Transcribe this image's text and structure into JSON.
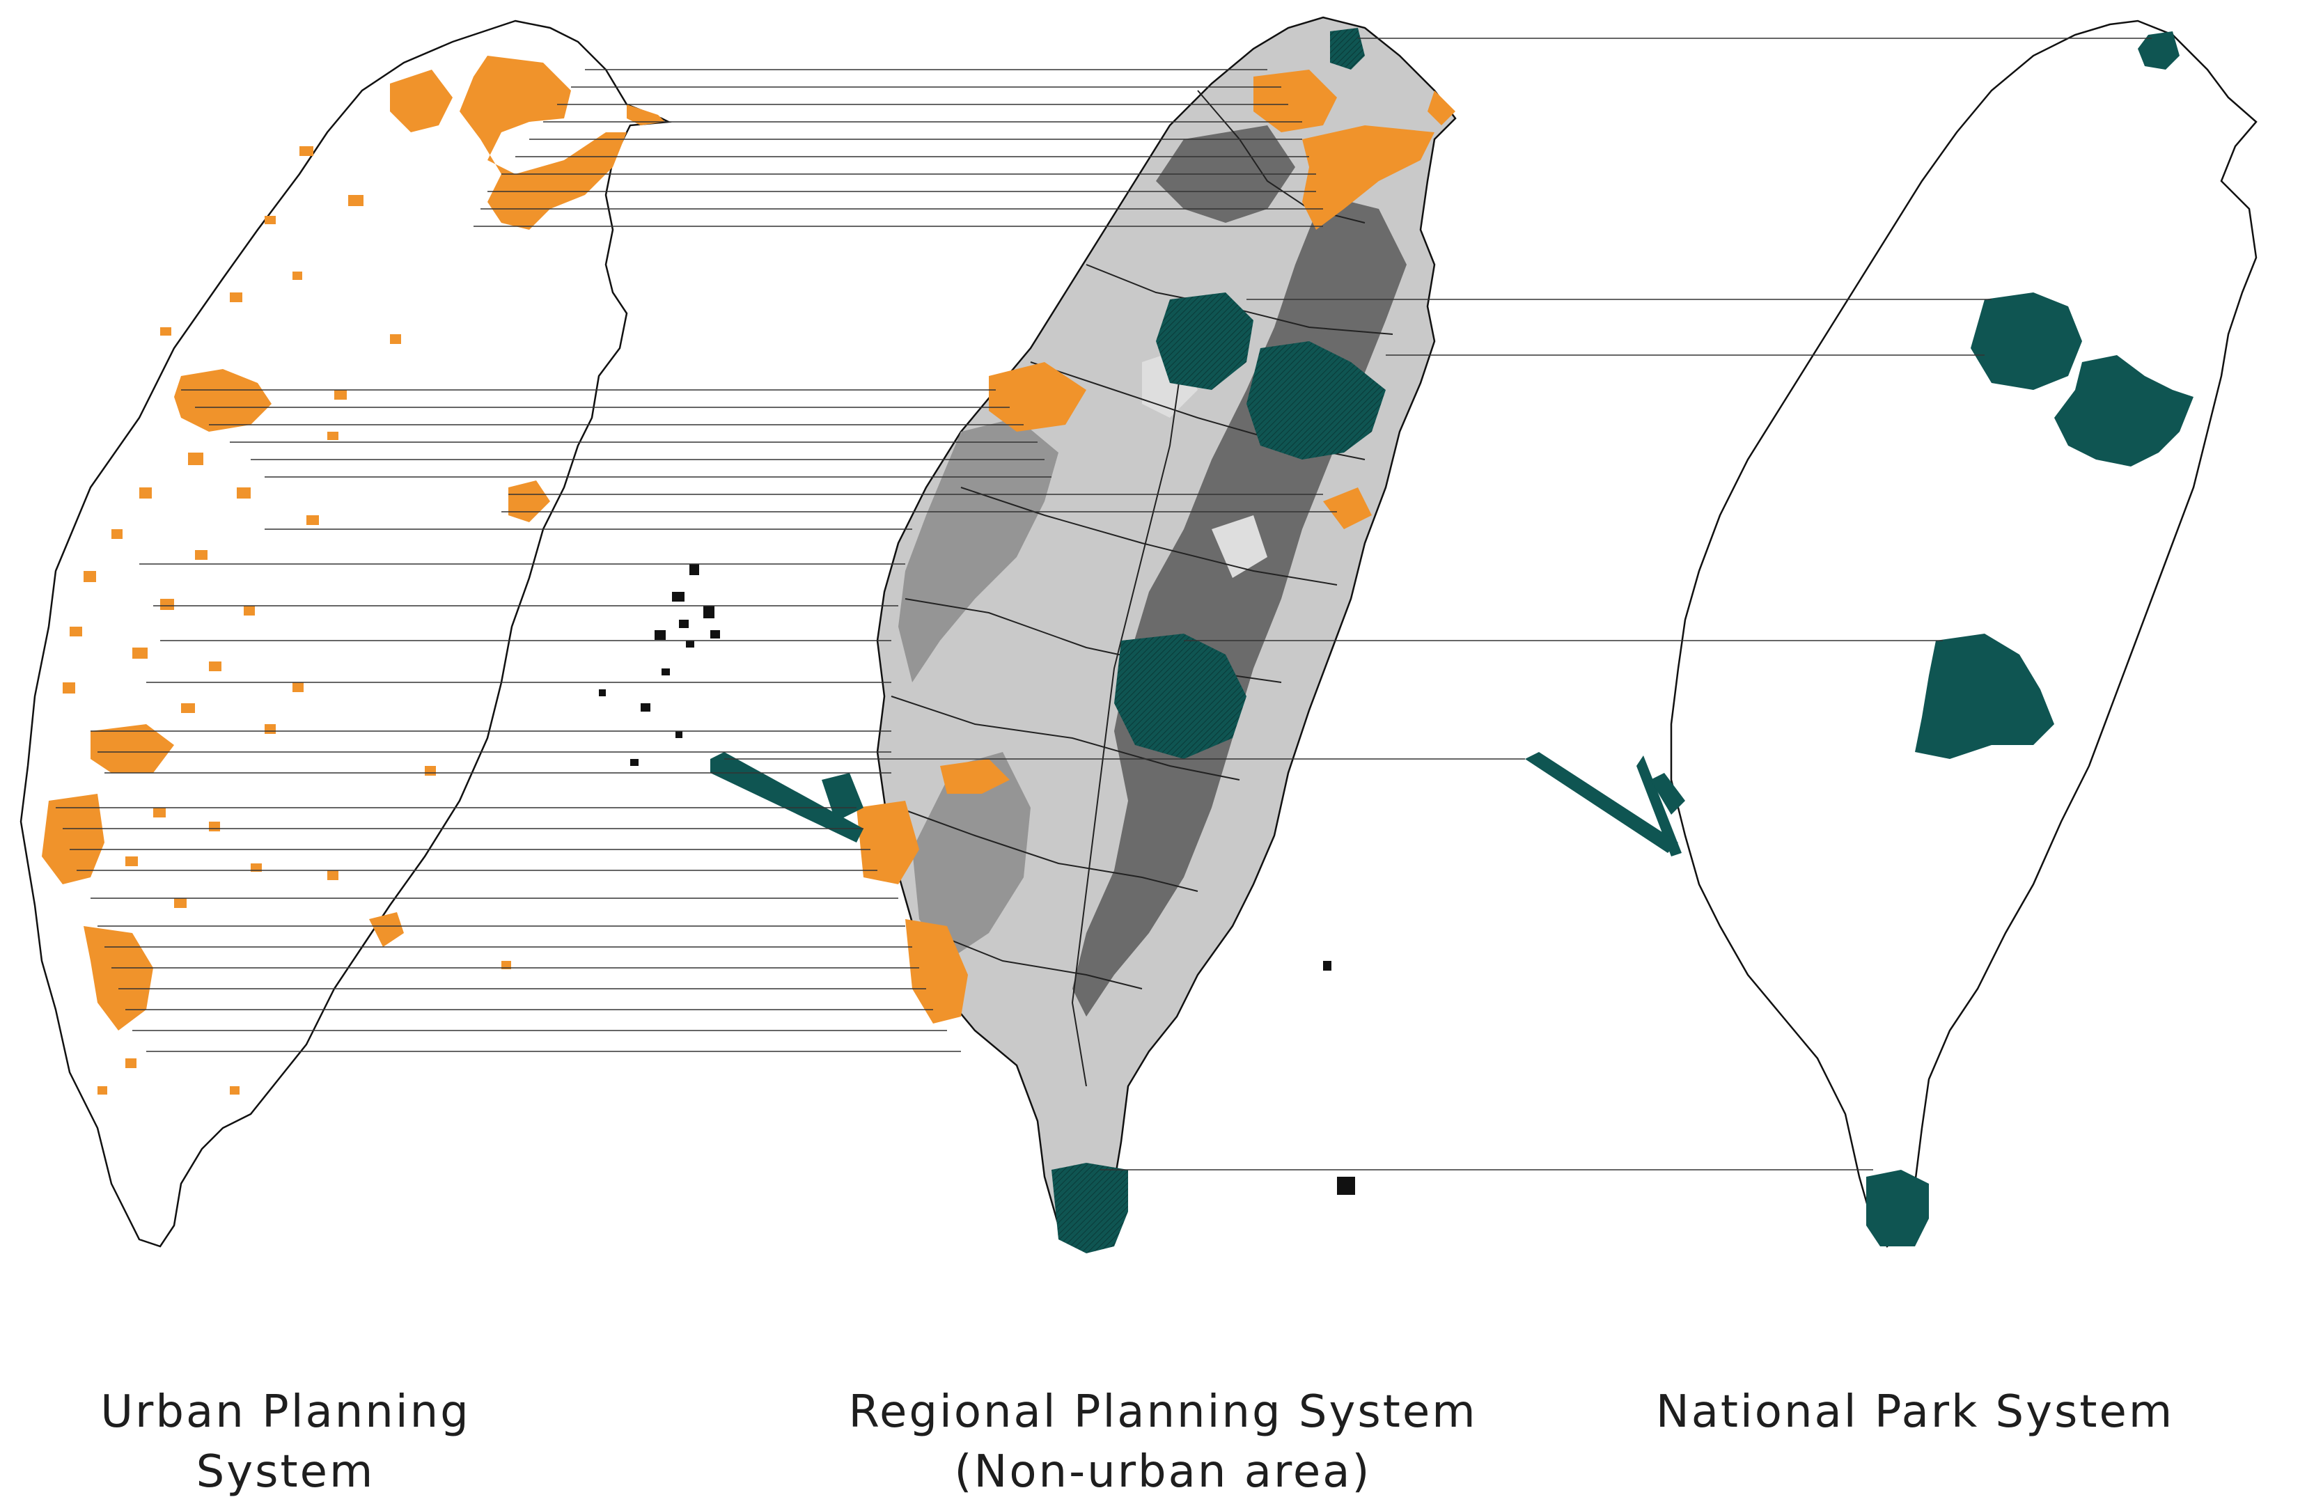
{
  "figure": {
    "panels": [
      {
        "id": "urban",
        "title": "Urban Planning System",
        "subtitle": ""
      },
      {
        "id": "regional",
        "title": "Regional Planning System",
        "subtitle": "(Non-urban area)"
      },
      {
        "id": "park",
        "title": "National Park System",
        "subtitle": ""
      }
    ],
    "legend_colors": {
      "urban_planning_area": "#f0932b",
      "national_park": "#0f5552",
      "national_park_dark": "#0c3f3d",
      "non_urban_dark": "#6b6b6b",
      "non_urban_mid": "#959595",
      "non_urban_light": "#c9c9c9",
      "outline": "#111111",
      "connector_line": "#222222"
    }
  }
}
